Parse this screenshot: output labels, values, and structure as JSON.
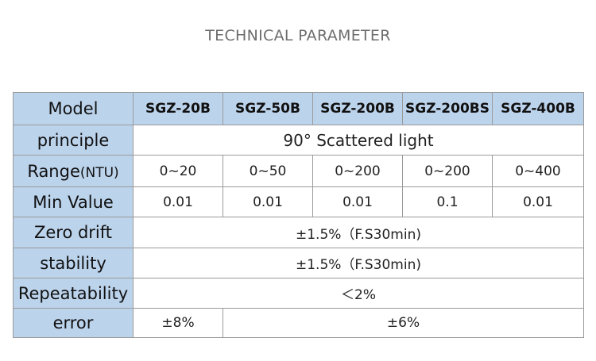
{
  "heading": "TECHNICAL PARAMETER",
  "table": {
    "model": {
      "label": "Model",
      "values": [
        "SGZ-20B",
        "SGZ-50B",
        "SGZ-200B",
        "SGZ-200BS",
        "SGZ-400B"
      ]
    },
    "principle": {
      "label": "principle",
      "value": "90° Scattered light"
    },
    "range": {
      "label": "Range",
      "unit": "(NTU)",
      "values": [
        "0~20",
        "0~50",
        "0~200",
        "0~200",
        "0~400"
      ]
    },
    "min_value": {
      "label": "Min Value",
      "values": [
        "0.01",
        "0.01",
        "0.01",
        "0.1",
        "0.01"
      ]
    },
    "zero_drift": {
      "label": "Zero drift",
      "value": "±1.5%（F.S30min)"
    },
    "stability": {
      "label": "stability",
      "value": "±1.5%（F.S30min)"
    },
    "repeatability": {
      "label": "Repeatability",
      "value": "＜2%"
    },
    "error": {
      "label": "error",
      "values": [
        "±8%",
        "±6%"
      ]
    }
  },
  "colors": {
    "header_fill": "#bcd3ec",
    "border": "#9a9a9a",
    "heading_text": "#6e6e6e"
  }
}
